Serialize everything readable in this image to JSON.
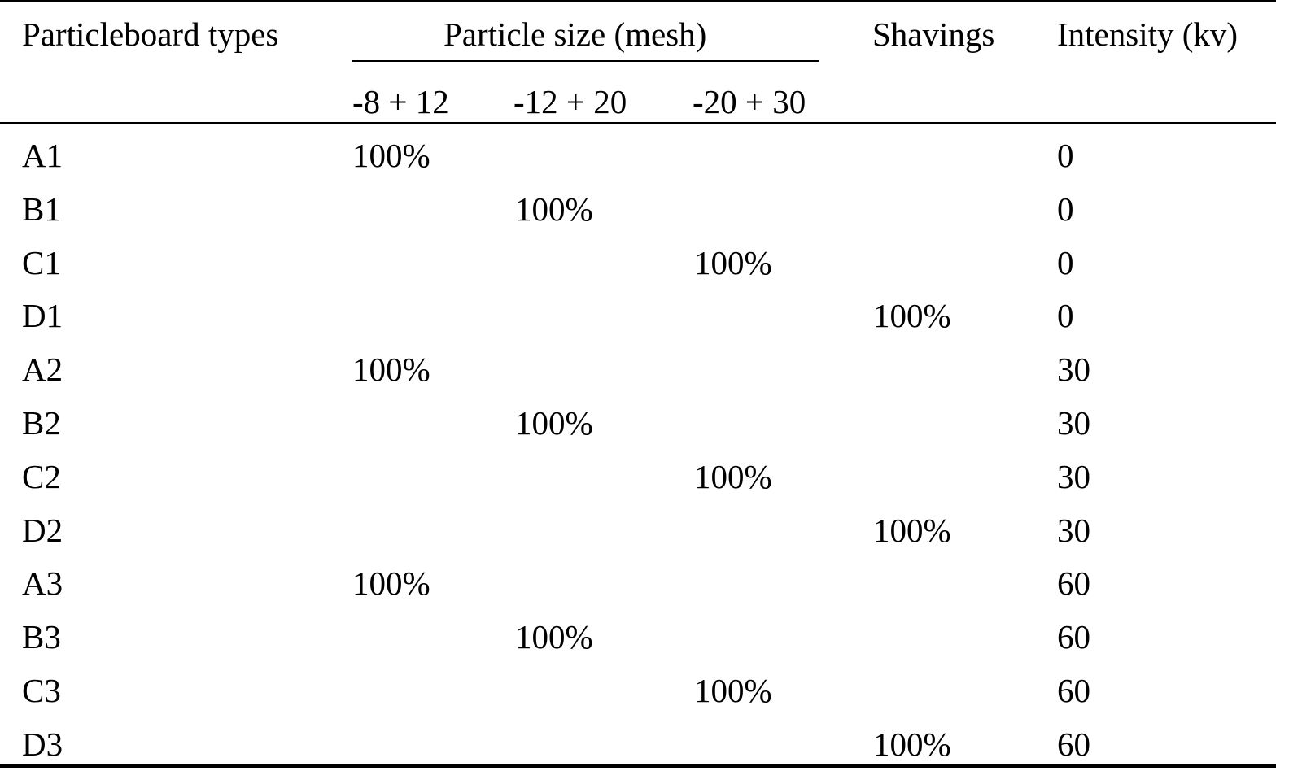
{
  "table": {
    "headers": {
      "type": "Particleboard types",
      "particle_size": "Particle size (mesh)",
      "shavings": "Shavings",
      "intensity": "Intensity (kv)",
      "sub": [
        "-8 + 12",
        "-12 + 20",
        "-20 + 30"
      ]
    },
    "rows": [
      {
        "type": "A1",
        "s1": "100%",
        "s2": "",
        "s3": "",
        "shavings": "",
        "intensity": "0"
      },
      {
        "type": "B1",
        "s1": "",
        "s2": "100%",
        "s3": "",
        "shavings": "",
        "intensity": "0"
      },
      {
        "type": "C1",
        "s1": "",
        "s2": "",
        "s3": "100%",
        "shavings": "",
        "intensity": "0"
      },
      {
        "type": "D1",
        "s1": "",
        "s2": "",
        "s3": "",
        "shavings": "100%",
        "intensity": "0"
      },
      {
        "type": "A2",
        "s1": "100%",
        "s2": "",
        "s3": "",
        "shavings": "",
        "intensity": "30"
      },
      {
        "type": "B2",
        "s1": "",
        "s2": "100%",
        "s3": "",
        "shavings": "",
        "intensity": "30"
      },
      {
        "type": "C2",
        "s1": "",
        "s2": "",
        "s3": "100%",
        "shavings": "",
        "intensity": "30"
      },
      {
        "type": "D2",
        "s1": "",
        "s2": "",
        "s3": "",
        "shavings": "100%",
        "intensity": "30"
      },
      {
        "type": "A3",
        "s1": "100%",
        "s2": "",
        "s3": "",
        "shavings": "",
        "intensity": "60"
      },
      {
        "type": "B3",
        "s1": "",
        "s2": "100%",
        "s3": "",
        "shavings": "",
        "intensity": "60"
      },
      {
        "type": "C3",
        "s1": "",
        "s2": "",
        "s3": "100%",
        "shavings": "",
        "intensity": "60"
      },
      {
        "type": "D3",
        "s1": "",
        "s2": "",
        "s3": "",
        "shavings": "100%",
        "intensity": "60"
      }
    ]
  }
}
